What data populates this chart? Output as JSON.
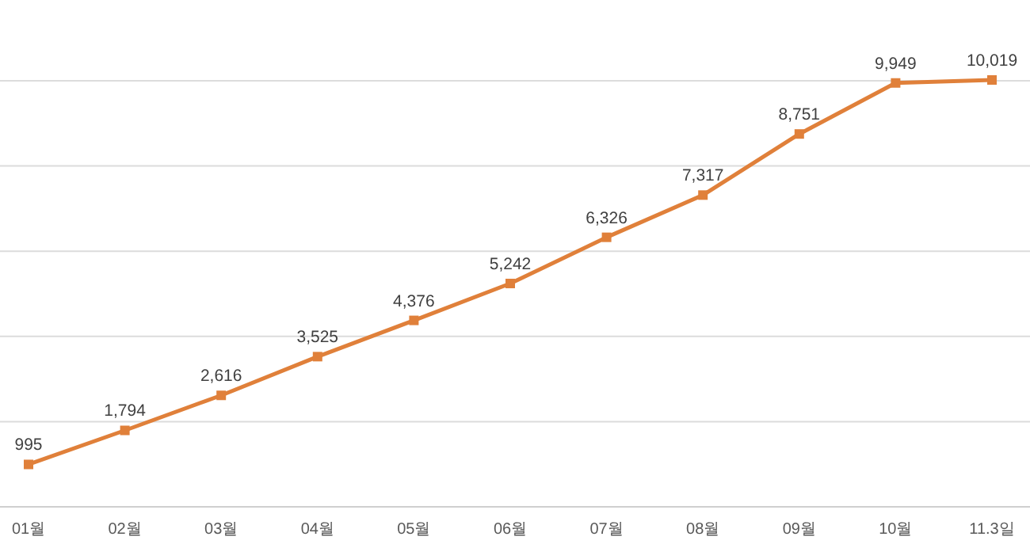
{
  "chart_data": {
    "type": "line",
    "categories": [
      "01월",
      "02월",
      "03월",
      "04월",
      "05월",
      "06월",
      "07월",
      "08월",
      "09월",
      "10월",
      "11.3일"
    ],
    "series": [
      {
        "color": "#e0803a",
        "values": [
          995,
          1794,
          2616,
          3525,
          4376,
          5242,
          6326,
          7317,
          8751,
          9949,
          10019
        ],
        "value_labels": [
          "995",
          "1,794",
          "2,616",
          "3,525",
          "4,376",
          "5,242",
          "6,326",
          "7,317",
          "8,751",
          "9,949",
          "10,019"
        ]
      }
    ],
    "yticks": [
      {
        "value": 0,
        "label": null
      },
      {
        "value": 2000,
        "label": null
      },
      {
        "value": 4000,
        "label": null
      },
      {
        "value": 6000,
        "label": null
      },
      {
        "value": 8000,
        "label": null
      },
      {
        "value": 10000,
        "label": null
      }
    ],
    "grid": "y",
    "marker": "square",
    "line_style": "solid",
    "tick_labels": "x"
  }
}
